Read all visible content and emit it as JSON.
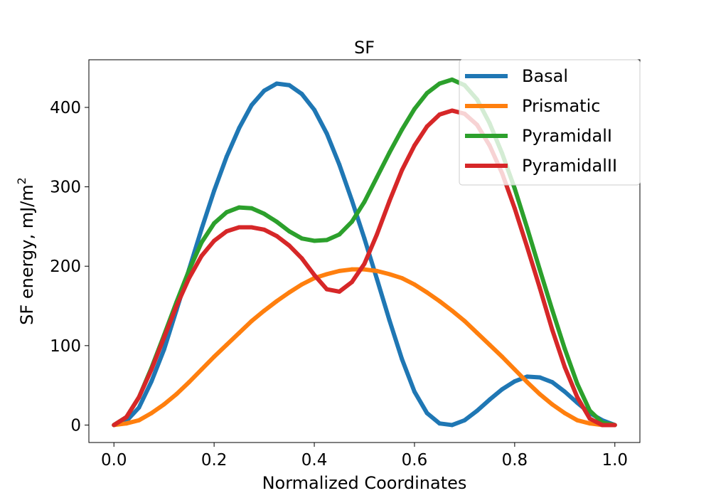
{
  "chart_data": {
    "type": "line",
    "title": "SF",
    "xlabel": "Normalized Coordinates",
    "ylabel": "SF energy, mJ/m",
    "ylabel_superscript": "2",
    "xlim": [
      -0.05,
      1.05
    ],
    "ylim": [
      -22,
      460
    ],
    "xticks": [
      0.0,
      0.2,
      0.4,
      0.6,
      0.8,
      1.0
    ],
    "xtick_labels": [
      "0.0",
      "0.2",
      "0.4",
      "0.6",
      "0.8",
      "1.0"
    ],
    "yticks": [
      0,
      100,
      200,
      300,
      400
    ],
    "ytick_labels": [
      "0",
      "100",
      "200",
      "300",
      "400"
    ],
    "grid": false,
    "legend_position": "top-right",
    "x": [
      0.0,
      0.025,
      0.05,
      0.075,
      0.1,
      0.125,
      0.15,
      0.175,
      0.2,
      0.225,
      0.25,
      0.275,
      0.3,
      0.325,
      0.35,
      0.375,
      0.4,
      0.425,
      0.45,
      0.475,
      0.5,
      0.525,
      0.55,
      0.575,
      0.6,
      0.625,
      0.65,
      0.675,
      0.7,
      0.725,
      0.75,
      0.775,
      0.8,
      0.825,
      0.85,
      0.875,
      0.9,
      0.925,
      0.95,
      0.975,
      1.0
    ],
    "series": [
      {
        "name": "Basal",
        "color": "#1f77b4",
        "values": [
          0,
          5,
          22,
          55,
          95,
          145,
          196,
          247,
          295,
          338,
          374,
          403,
          421,
          430,
          428,
          417,
          397,
          367,
          328,
          283,
          235,
          184,
          132,
          83,
          42,
          15,
          2,
          0,
          6,
          18,
          32,
          45,
          55,
          61,
          60,
          54,
          42,
          28,
          15,
          6,
          0
        ]
      },
      {
        "name": "Prismatic",
        "color": "#ff7f0e",
        "values": [
          0,
          2,
          6,
          15,
          26,
          39,
          54,
          70,
          86,
          101,
          116,
          131,
          144,
          156,
          167,
          177,
          185,
          190,
          194,
          196,
          196,
          194,
          190,
          185,
          177,
          167,
          156,
          144,
          131,
          116,
          101,
          86,
          70,
          54,
          39,
          26,
          15,
          6,
          2,
          0,
          0
        ]
      },
      {
        "name": "PyramidalI",
        "color": "#2ca02c",
        "values": [
          0,
          10,
          35,
          72,
          113,
          155,
          195,
          230,
          254,
          268,
          274,
          273,
          266,
          256,
          244,
          235,
          232,
          233,
          240,
          256,
          281,
          312,
          343,
          372,
          398,
          418,
          430,
          435,
          428,
          410,
          380,
          342,
          298,
          248,
          196,
          145,
          96,
          52,
          18,
          3,
          0
        ]
      },
      {
        "name": "PyramidalII",
        "color": "#d62728",
        "values": [
          0,
          10,
          35,
          70,
          110,
          150,
          185,
          213,
          232,
          244,
          249,
          249,
          246,
          238,
          226,
          210,
          189,
          171,
          168,
          180,
          203,
          240,
          282,
          321,
          352,
          376,
          391,
          396,
          392,
          378,
          352,
          317,
          273,
          224,
          173,
          120,
          73,
          35,
          8,
          0,
          0
        ]
      }
    ]
  }
}
